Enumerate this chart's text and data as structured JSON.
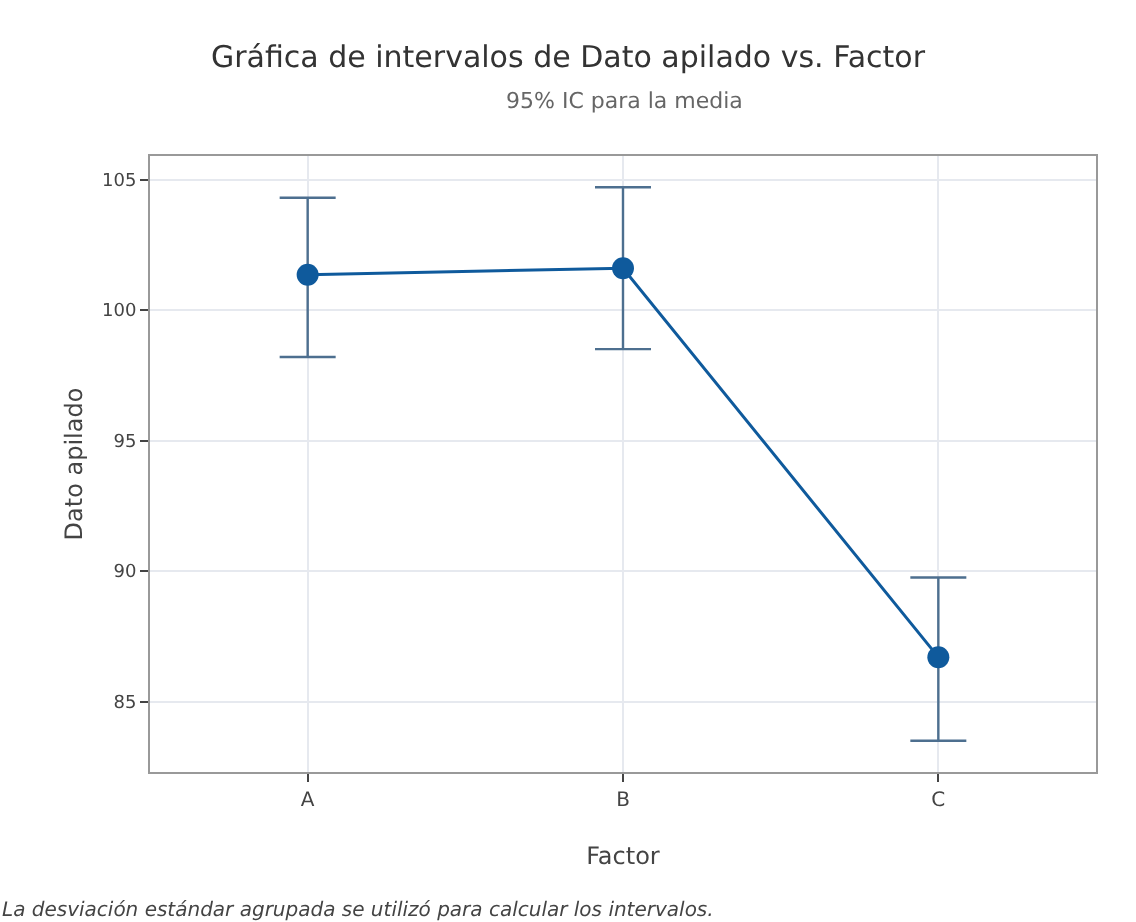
{
  "chart_data": {
    "type": "line",
    "title": "Gráfica de intervalos de Dato apilado vs. Factor",
    "subtitle": "95% IC para la media",
    "xlabel": "Factor",
    "ylabel": "Dato apilado",
    "categories": [
      "A",
      "B",
      "C"
    ],
    "series": [
      {
        "color": "#0f5a9c",
        "values": [
          101.35,
          101.6,
          86.7
        ],
        "errors": [
          [
            98.2,
            104.3
          ],
          [
            98.5,
            104.7
          ],
          [
            83.5,
            89.75
          ]
        ]
      }
    ],
    "ylim": [
      82.3,
      105.9
    ],
    "yticks": [
      85,
      90,
      95,
      100,
      105
    ],
    "grid": true,
    "marker": "circle",
    "line_style": "solid",
    "annotations": [
      "La desviación estándar agrupada se utilizó para calcular los intervalos."
    ]
  }
}
